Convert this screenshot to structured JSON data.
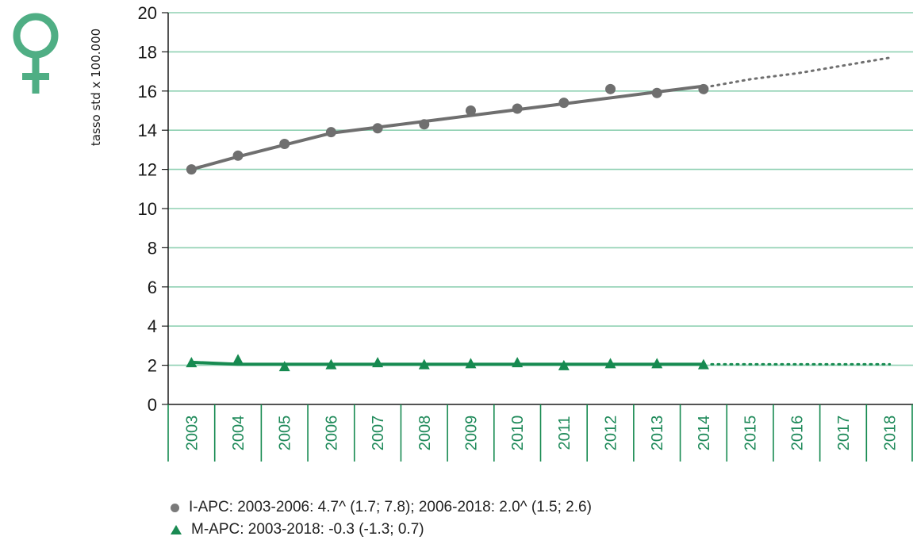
{
  "colors": {
    "incidence": "#6f6f6f",
    "mortality": "#168a50",
    "grid": "#8fd0b2",
    "female_symbol": "#4fae84"
  },
  "icon": "female-symbol-icon",
  "chart_data": {
    "type": "line",
    "ylabel": "tasso std x 100.000",
    "ylim": [
      0,
      20
    ],
    "yticks": [
      "0",
      "2",
      "4",
      "6",
      "8",
      "10",
      "12",
      "14",
      "16",
      "18",
      "20"
    ],
    "categories": [
      "2003",
      "2004",
      "2005",
      "2006",
      "2007",
      "2008",
      "2009",
      "2010",
      "2011",
      "2012",
      "2013",
      "2014",
      "2015",
      "2016",
      "2017",
      "2018"
    ],
    "grid": true,
    "series": [
      {
        "name": "I-APC",
        "marker": "circle",
        "observed": [
          12.0,
          12.7,
          13.3,
          13.9,
          14.1,
          14.3,
          15.0,
          15.1,
          15.4,
          16.1,
          15.9,
          16.1
        ],
        "fitted": [
          12.0,
          12.65,
          13.25,
          13.85,
          14.15,
          14.45,
          14.75,
          15.05,
          15.35,
          15.65,
          15.95,
          16.25
        ],
        "projection": [
          16.25,
          16.6,
          16.9,
          17.3,
          17.7
        ]
      },
      {
        "name": "M-APC",
        "marker": "triangle",
        "observed": [
          2.1,
          2.25,
          1.9,
          2.0,
          2.1,
          2.0,
          2.05,
          2.1,
          1.95,
          2.05,
          2.05,
          2.0
        ],
        "fitted": [
          2.15,
          2.05,
          2.05,
          2.05,
          2.05,
          2.05,
          2.05,
          2.05,
          2.05,
          2.05,
          2.05,
          2.05
        ],
        "projection": [
          2.05,
          2.05,
          2.05,
          2.05,
          2.05
        ]
      }
    ],
    "legend": [
      {
        "marker": "circle",
        "text": "I-APC: 2003-2006: 4.7^ (1.7; 7.8); 2006-2018: 2.0^ (1.5; 2.6)"
      },
      {
        "marker": "triangle",
        "text": "M-APC: 2003-2018: -0.3 (-1.3; 0.7)"
      }
    ]
  }
}
